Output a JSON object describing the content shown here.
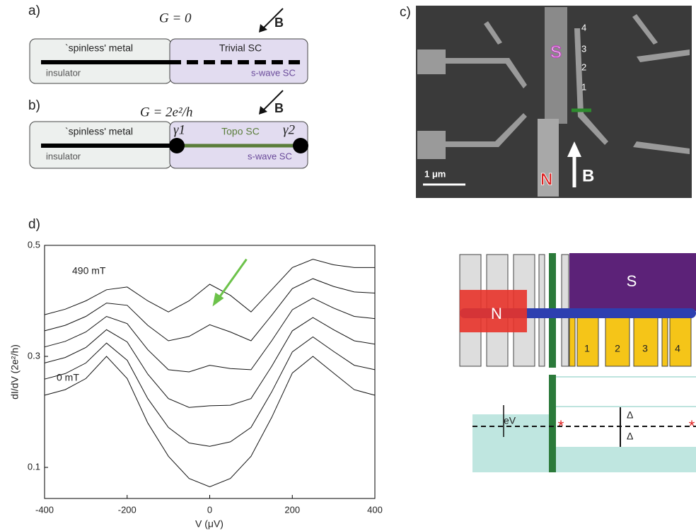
{
  "panel_a": {
    "label": "a)",
    "equation": "G = 0",
    "field": "B",
    "metal": "`spinless' metal",
    "sc": "Trivial SC",
    "insulator": "insulator",
    "swave": "s-wave SC"
  },
  "panel_b": {
    "label": "b)",
    "equation": "G = 2e²/h",
    "field": "B",
    "metal": "`spinless' metal",
    "gamma1": "γ1",
    "sc": "Topo SC",
    "gamma2": "γ2",
    "insulator": "insulator",
    "swave": "s-wave SC"
  },
  "panel_c": {
    "label": "c)",
    "s": "S",
    "gates": [
      "4",
      "3",
      "2",
      "1"
    ],
    "scale": "1 μm",
    "n": "N",
    "field": "B"
  },
  "panel_e": {
    "s": "S",
    "n": "N",
    "gates": [
      "1",
      "2",
      "3",
      "4"
    ],
    "ev": "eV",
    "delta_top": "Δ",
    "delta_bottom": "Δ"
  },
  "chart_data": {
    "type": "line",
    "label": "d)",
    "xlabel": "V (μV)",
    "ylabel": "dI/dV (2e²/h)",
    "annotations": [
      "490 mT",
      "0 mT"
    ],
    "x": [
      -400,
      -350,
      -300,
      -250,
      -200,
      -150,
      -100,
      -50,
      0,
      50,
      100,
      150,
      200,
      250,
      300,
      350,
      400
    ],
    "xlim": [
      -400,
      400
    ],
    "xticks": [
      -400,
      -200,
      0,
      200,
      400
    ],
    "ylim": [
      0.044,
      0.5
    ],
    "yticks": [
      0.1,
      0.3,
      0.5
    ],
    "color": "#111111",
    "arrow_color": "#6cc24a",
    "series": [
      {
        "values": [
          0.23,
          0.24,
          0.26,
          0.3,
          0.26,
          0.18,
          0.12,
          0.08,
          0.065,
          0.08,
          0.12,
          0.19,
          0.27,
          0.3,
          0.27,
          0.24,
          0.23
        ]
      },
      {
        "values": [
          0.259,
          0.269,
          0.288,
          0.324,
          0.293,
          0.224,
          0.172,
          0.144,
          0.138,
          0.146,
          0.172,
          0.236,
          0.308,
          0.335,
          0.309,
          0.284,
          0.276
        ]
      },
      {
        "values": [
          0.288,
          0.298,
          0.316,
          0.348,
          0.326,
          0.268,
          0.224,
          0.208,
          0.211,
          0.212,
          0.224,
          0.282,
          0.346,
          0.37,
          0.348,
          0.328,
          0.322
        ]
      },
      {
        "values": [
          0.317,
          0.327,
          0.344,
          0.372,
          0.359,
          0.312,
          0.276,
          0.272,
          0.284,
          0.278,
          0.276,
          0.328,
          0.384,
          0.405,
          0.387,
          0.372,
          0.368
        ]
      },
      {
        "values": [
          0.346,
          0.356,
          0.372,
          0.396,
          0.392,
          0.356,
          0.328,
          0.336,
          0.357,
          0.344,
          0.328,
          0.374,
          0.422,
          0.44,
          0.426,
          0.416,
          0.414
        ]
      },
      {
        "values": [
          0.375,
          0.385,
          0.4,
          0.42,
          0.425,
          0.4,
          0.38,
          0.4,
          0.43,
          0.41,
          0.38,
          0.42,
          0.46,
          0.475,
          0.465,
          0.46,
          0.46
        ]
      }
    ]
  }
}
